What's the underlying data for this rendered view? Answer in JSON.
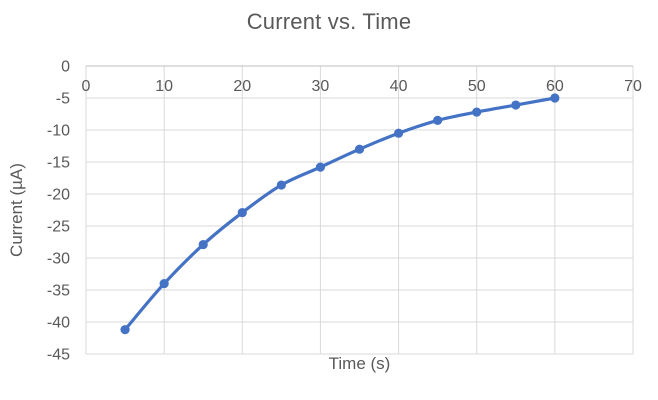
{
  "chart_data": {
    "type": "scatter",
    "subtype": "smooth-line-with-markers",
    "title": "Current vs. Time",
    "xlabel": "Time (s)",
    "ylabel": "Current (µA)",
    "x": [
      5,
      10,
      15,
      20,
      25,
      30,
      35,
      40,
      45,
      50,
      55,
      60
    ],
    "series": [
      {
        "name": "Current",
        "values": [
          -41.2,
          -34.0,
          -27.9,
          -22.9,
          -18.6,
          -15.8,
          -13.0,
          -10.5,
          -8.5,
          -7.2,
          -6.1,
          -5.0
        ]
      }
    ],
    "xlim": [
      0,
      70
    ],
    "ylim": [
      -45,
      0
    ],
    "xticks": [
      0,
      10,
      20,
      30,
      40,
      50,
      60,
      70
    ],
    "yticks": [
      0,
      -5,
      -10,
      -15,
      -20,
      -25,
      -30,
      -35,
      -40,
      -45
    ],
    "grid": true,
    "legend_position": "none",
    "colors": {
      "series": "#4472C4",
      "marker": "#4472C4",
      "gridline": "#D9D9D9",
      "zero_axis": "#BFBFBF",
      "text": "#595959",
      "background": "#FFFFFF"
    }
  }
}
